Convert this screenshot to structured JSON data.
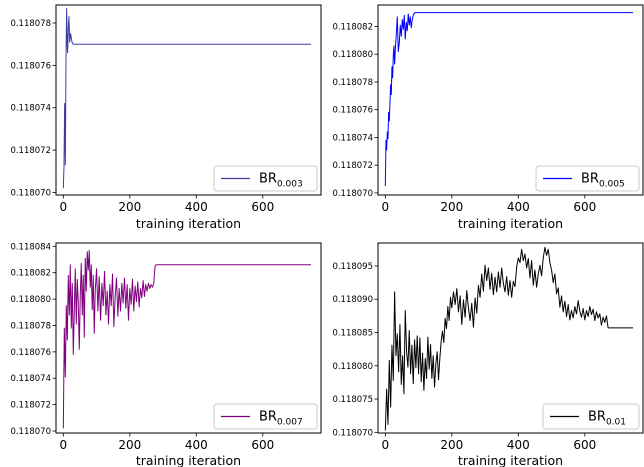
{
  "figure": {
    "xlabel": "training iteration",
    "background": "#ffffff"
  },
  "chart_data": [
    {
      "type": "line",
      "xlabel": "training iteration",
      "ylabel": "",
      "xlim": [
        -22,
        775
      ],
      "ylim": [
        0.11806988,
        0.11807885
      ],
      "xticks": [
        0,
        200,
        400,
        600
      ],
      "xtick_labels": [
        "0",
        "200",
        "400",
        "600"
      ],
      "yticks": [
        0.11807,
        0.118072,
        0.118074,
        0.118076,
        0.118078
      ],
      "ytick_labels": [
        "0.118070",
        "0.118072",
        "0.118074",
        "0.118076",
        "0.118078"
      ],
      "grid": false,
      "legend_position": "lower-right",
      "series": [
        {
          "name_base": "BR",
          "name_sub": "0.003",
          "color": "#3e3aa6",
          "x": [
            0,
            2,
            4,
            6,
            7,
            8,
            9,
            10,
            12,
            13,
            15,
            17,
            19,
            22,
            26,
            30,
            40,
            60,
            100,
            200,
            400,
            600,
            745
          ],
          "y": [
            0.1180702,
            0.1180712,
            0.1180742,
            0.1180713,
            0.1180735,
            0.1180762,
            0.1180775,
            0.1180787,
            0.1180768,
            0.1180766,
            0.1180778,
            0.1180783,
            0.1180771,
            0.1180775,
            0.1180771,
            0.118077,
            0.118077,
            0.118077,
            0.118077,
            0.118077,
            0.118077,
            0.118077,
            0.118077
          ]
        }
      ]
    },
    {
      "type": "line",
      "xlabel": "training iteration",
      "ylabel": "",
      "xlim": [
        -22,
        775
      ],
      "ylim": [
        0.11806985,
        0.11808355
      ],
      "xticks": [
        0,
        200,
        400,
        600
      ],
      "xtick_labels": [
        "0",
        "200",
        "400",
        "600"
      ],
      "yticks": [
        0.11807,
        0.118072,
        0.118074,
        0.118076,
        0.118078,
        0.11808,
        0.118082
      ],
      "ytick_labels": [
        "0.118070",
        "0.118072",
        "0.118074",
        "0.118076",
        "0.118078",
        "0.118080",
        "0.118082"
      ],
      "grid": false,
      "legend_position": "lower-right",
      "series": [
        {
          "name_base": "BR",
          "name_sub": "0.005",
          "color": "#0000ff",
          "x": [
            0,
            2,
            4,
            6,
            8,
            10,
            12,
            14,
            16,
            18,
            20,
            22,
            24,
            26,
            28,
            30,
            33,
            36,
            39,
            42,
            45,
            48,
            51,
            54,
            57,
            60,
            63,
            66,
            69,
            72,
            75,
            78,
            81,
            84,
            88,
            92,
            100,
            200,
            300,
            400,
            500,
            600,
            745
          ],
          "y": [
            0.1180705,
            0.1180738,
            0.1180731,
            0.1180744,
            0.1180739,
            0.1180758,
            0.1180752,
            0.1180765,
            0.1180778,
            0.1180771,
            0.1180791,
            0.1180783,
            0.1180799,
            0.1180806,
            0.1180793,
            0.1180803,
            0.1180814,
            0.1180827,
            0.1180802,
            0.1180808,
            0.1180821,
            0.1180813,
            0.1180825,
            0.1180818,
            0.1180828,
            0.1180811,
            0.1180823,
            0.1180817,
            0.1180829,
            0.1180821,
            0.1180827,
            0.1180819,
            0.1180825,
            0.1180828,
            0.118083,
            0.118083,
            0.118083,
            0.118083,
            0.118083,
            0.118083,
            0.118083,
            0.118083,
            0.118083
          ]
        }
      ]
    },
    {
      "type": "line",
      "xlabel": "training iteration",
      "ylabel": "",
      "xlim": [
        -22,
        775
      ],
      "ylim": [
        0.11806985,
        0.11808425
      ],
      "xticks": [
        0,
        200,
        400,
        600
      ],
      "xtick_labels": [
        "0",
        "200",
        "400",
        "600"
      ],
      "yticks": [
        0.11807,
        0.118072,
        0.118074,
        0.118076,
        0.118078,
        0.11808,
        0.118082,
        0.118084
      ],
      "ytick_labels": [
        "0.118070",
        "0.118072",
        "0.118074",
        "0.118076",
        "0.118078",
        "0.118080",
        "0.118082",
        "0.118084"
      ],
      "grid": false,
      "legend_position": "lower-right",
      "series": [
        {
          "name_base": "BR",
          "name_sub": "0.007",
          "color": "#800080",
          "x": [
            0,
            3,
            6,
            9,
            12,
            15,
            18,
            21,
            24,
            27,
            30,
            33,
            36,
            39,
            42,
            45,
            48,
            51,
            54,
            57,
            60,
            63,
            66,
            69,
            72,
            75,
            78,
            81,
            84,
            87,
            90,
            93,
            96,
            100,
            104,
            108,
            112,
            116,
            120,
            124,
            128,
            132,
            136,
            140,
            144,
            148,
            152,
            156,
            160,
            164,
            168,
            172,
            176,
            180,
            184,
            188,
            192,
            196,
            200,
            204,
            208,
            212,
            216,
            220,
            224,
            228,
            232,
            236,
            240,
            244,
            248,
            252,
            256,
            260,
            264,
            268,
            272,
            276,
            280,
            300,
            400,
            500,
            600,
            745
          ],
          "y": [
            0.1180702,
            0.1180778,
            0.1180741,
            0.1180795,
            0.1180769,
            0.1180818,
            0.1180788,
            0.1180826,
            0.1180778,
            0.1180812,
            0.1180758,
            0.1180791,
            0.1180823,
            0.1180781,
            0.1180815,
            0.1180797,
            0.1180762,
            0.1180803,
            0.1180827,
            0.1180788,
            0.1180818,
            0.1180771,
            0.1180831,
            0.1180806,
            0.1180836,
            0.1180822,
            0.1180837,
            0.1180809,
            0.1180826,
            0.1180792,
            0.1180818,
            0.1180774,
            0.1180806,
            0.1180823,
            0.1180791,
            0.1180817,
            0.1180784,
            0.1180812,
            0.1180795,
            0.1180821,
            0.1180788,
            0.1180806,
            0.1180781,
            0.1180811,
            0.1180795,
            0.1180819,
            0.1180779,
            0.1180802,
            0.1180816,
            0.1180787,
            0.1180808,
            0.1180791,
            0.1180812,
            0.1180797,
            0.1180816,
            0.1180793,
            0.1180811,
            0.1180784,
            0.1180808,
            0.1180796,
            0.1180815,
            0.1180791,
            0.118081,
            0.1180798,
            0.1180813,
            0.1180794,
            0.1180808,
            0.1180801,
            0.1180814,
            0.1180802,
            0.1180811,
            0.1180806,
            0.1180812,
            0.1180808,
            0.1180811,
            0.1180809,
            0.1180812,
            0.1180825,
            0.1180826,
            0.1180826,
            0.1180826,
            0.1180826,
            0.1180826,
            0.1180826
          ]
        }
      ]
    },
    {
      "type": "line",
      "xlabel": "training iteration",
      "ylabel": "",
      "xlim": [
        -22,
        775
      ],
      "ylim": [
        0.1180699,
        0.11809845
      ],
      "xticks": [
        0,
        200,
        400,
        600
      ],
      "xtick_labels": [
        "0",
        "200",
        "400",
        "600"
      ],
      "yticks": [
        0.11807,
        0.118075,
        0.11808,
        0.118085,
        0.11809,
        0.118095
      ],
      "ytick_labels": [
        "0.118070",
        "0.118075",
        "0.118080",
        "0.118085",
        "0.118090",
        "0.118095"
      ],
      "grid": false,
      "legend_position": "lower-right",
      "series": [
        {
          "name_base": "BR",
          "name_sub": "0.01",
          "color": "#000000",
          "x": [
            0,
            4,
            8,
            12,
            16,
            20,
            24,
            28,
            32,
            36,
            40,
            44,
            48,
            52,
            56,
            60,
            64,
            68,
            72,
            76,
            80,
            84,
            88,
            92,
            96,
            100,
            104,
            108,
            112,
            116,
            120,
            124,
            128,
            132,
            136,
            140,
            144,
            148,
            152,
            156,
            160,
            164,
            168,
            172,
            176,
            180,
            184,
            188,
            192,
            196,
            200,
            205,
            210,
            215,
            220,
            225,
            230,
            235,
            240,
            245,
            250,
            255,
            260,
            265,
            270,
            275,
            280,
            285,
            290,
            295,
            300,
            305,
            310,
            315,
            320,
            325,
            330,
            335,
            340,
            345,
            350,
            355,
            360,
            365,
            370,
            375,
            380,
            385,
            390,
            395,
            400,
            405,
            410,
            415,
            420,
            425,
            430,
            435,
            440,
            445,
            450,
            455,
            460,
            465,
            470,
            475,
            480,
            485,
            490,
            495,
            500,
            505,
            510,
            515,
            520,
            525,
            530,
            535,
            540,
            545,
            550,
            555,
            560,
            565,
            570,
            575,
            580,
            585,
            590,
            595,
            600,
            605,
            610,
            615,
            620,
            625,
            630,
            635,
            640,
            645,
            650,
            655,
            660,
            665,
            670,
            680,
            700,
            745
          ],
          "y": [
            0.1180703,
            0.1180765,
            0.1180712,
            0.1180808,
            0.1180738,
            0.1180831,
            0.1180778,
            0.1180911,
            0.1180815,
            0.1180848,
            0.1180791,
            0.1180862,
            0.1180772,
            0.1180815,
            0.1180758,
            0.1180883,
            0.1180821,
            0.1180798,
            0.1180853,
            0.1180788,
            0.1180831,
            0.1180773,
            0.1180839,
            0.1180797,
            0.1180845,
            0.1180788,
            0.1180842,
            0.1180776,
            0.1180819,
            0.1180763,
            0.1180811,
            0.1180781,
            0.1180843,
            0.1180795,
            0.1180832,
            0.1180781,
            0.1180815,
            0.1180768,
            0.1180803,
            0.1180821,
            0.1180779,
            0.1180811,
            0.1180837,
            0.1180852,
            0.1180835,
            0.1180871,
            0.1180856,
            0.1180889,
            0.1180868,
            0.1180903,
            0.1180887,
            0.1180911,
            0.1180892,
            0.1180916,
            0.1180881,
            0.1180905,
            0.1180862,
            0.1180899,
            0.1180873,
            0.1180913,
            0.1180887,
            0.1180868,
            0.1180894,
            0.1180858,
            0.1180902,
            0.1180879,
            0.1180921,
            0.1180903,
            0.1180938,
            0.1180912,
            0.1180951,
            0.1180928,
            0.1180947,
            0.1180915,
            0.1180939,
            0.1180907,
            0.1180933,
            0.1180911,
            0.1180941,
            0.1180918,
            0.1180947,
            0.1180924,
            0.1180911,
            0.1180934,
            0.1180906,
            0.1180928,
            0.1180903,
            0.1180927,
            0.1180919,
            0.1180948,
            0.1180962,
            0.1180955,
            0.1180975,
            0.1180958,
            0.1180968,
            0.1180947,
            0.1180961,
            0.1180932,
            0.1180958,
            0.1180921,
            0.1180944,
            0.1180918,
            0.1180938,
            0.1180951,
            0.1180935,
            0.1180962,
            0.1180978,
            0.1180966,
            0.1180975,
            0.1180955,
            0.1180944,
            0.1180925,
            0.1180938,
            0.1180908,
            0.1180917,
            0.1180888,
            0.1180905,
            0.1180881,
            0.1180897,
            0.1180874,
            0.1180892,
            0.1180869,
            0.1180883,
            0.1180872,
            0.1180889,
            0.1180878,
            0.1180898,
            0.1180882,
            0.1180873,
            0.1180886,
            0.1180869,
            0.1180883,
            0.1180874,
            0.1180889,
            0.1180877,
            0.1180885,
            0.1180868,
            0.1180881,
            0.1180872,
            0.1180878,
            0.1180861,
            0.1180873,
            0.1180865,
            0.1180875,
            0.1180857,
            0.1180857,
            0.1180857,
            0.1180857
          ]
        }
      ]
    }
  ]
}
